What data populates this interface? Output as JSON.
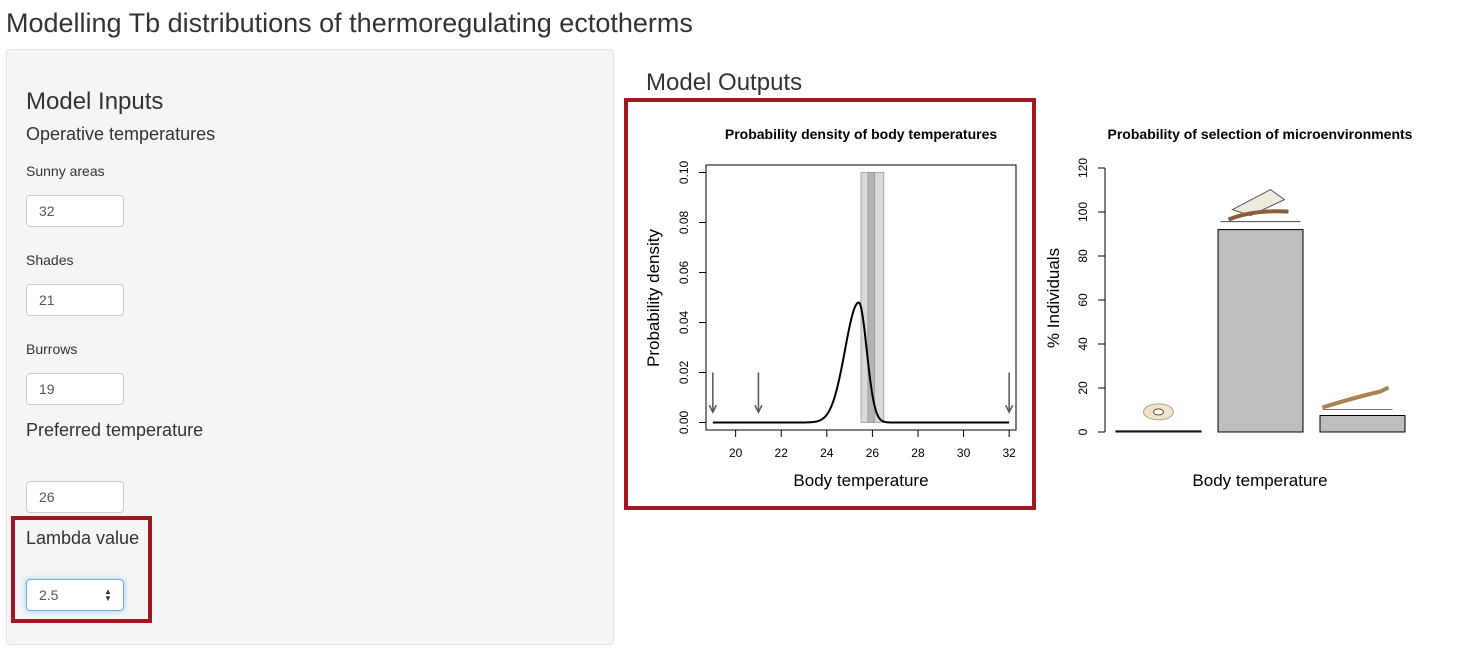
{
  "page": {
    "title": "Modelling Tb distributions of thermoregulating ectotherms"
  },
  "sidebar": {
    "heading": "Model Inputs",
    "operative_heading": "Operative temperatures",
    "sunny": {
      "label": "Sunny areas",
      "value": "32"
    },
    "shades": {
      "label": "Shades",
      "value": "21"
    },
    "burrows": {
      "label": "Burrows",
      "value": "19"
    },
    "preferred_heading": "Preferred temperature",
    "preferred": {
      "value": "26"
    },
    "lambda_heading": "Lambda value",
    "lambda": {
      "value": "2.5"
    }
  },
  "outputs": {
    "heading": "Model Outputs"
  },
  "colors": {
    "highlight": "#a01822",
    "bar": "#bebebe",
    "band_outer": "#d9d9d9",
    "band_inner": "#b3b3b3"
  },
  "chart_data": [
    {
      "type": "line",
      "title": "Probability density of body temperatures",
      "xlabel": "Body temperature",
      "ylabel": "Probability density",
      "xlim": [
        19,
        32
      ],
      "ylim": [
        0,
        0.1
      ],
      "x_ticks": [
        "20",
        "22",
        "24",
        "26",
        "28",
        "30",
        "32"
      ],
      "y_ticks": [
        "0.00",
        "0.02",
        "0.04",
        "0.06",
        "0.08",
        "0.10"
      ],
      "curve": {
        "peak_x": 25.4,
        "peak_y": 0.048,
        "sd_left": 0.6,
        "sd_right": 0.35
      },
      "bands": [
        {
          "from": 25.5,
          "to": 26.5,
          "shade": "outer"
        },
        {
          "from": 25.8,
          "to": 26.1,
          "shade": "inner"
        }
      ],
      "arrows_at": [
        19,
        21,
        32
      ],
      "grid": false
    },
    {
      "type": "bar",
      "title": "Probability of selection of microenvironments",
      "xlabel": "Body temperature",
      "ylabel": "% Individuals",
      "ylim": [
        0,
        120
      ],
      "y_ticks": [
        "0",
        "20",
        "40",
        "60",
        "80",
        "100",
        "120"
      ],
      "categories": [
        "burrow-icon",
        "shade-icon",
        "sun-icon"
      ],
      "values": [
        0.5,
        92,
        7.5
      ],
      "grid": false
    }
  ]
}
